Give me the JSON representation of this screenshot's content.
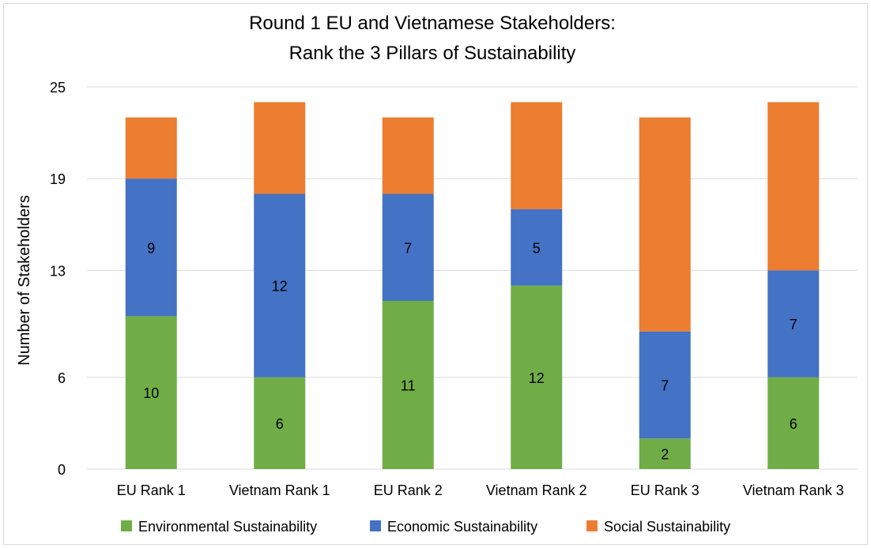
{
  "chart_data": {
    "type": "bar",
    "stacked": true,
    "title": [
      "Round 1 EU and Vietnamese Stakeholders:",
      "Rank the 3 Pillars of Sustainability"
    ],
    "xlabel": "",
    "ylabel": "Number of Stakeholders",
    "ylim": [
      0,
      25
    ],
    "yticks": [
      0,
      6,
      13,
      19,
      25
    ],
    "grid": true,
    "legend_position": "bottom",
    "categories": [
      "EU Rank 1",
      "Vietnam Rank 1",
      "EU Rank 2",
      "Vietnam Rank 2",
      "EU Rank 3",
      "Vietnam Rank 3"
    ],
    "series": [
      {
        "name": "Environmental Sustainability",
        "color": "#70ad47",
        "values": [
          10,
          6,
          11,
          12,
          2,
          6
        ],
        "labels": [
          "10",
          "6",
          "11",
          "12",
          "2",
          "6"
        ]
      },
      {
        "name": "Economic Sustainability",
        "color": "#4472c4",
        "values": [
          9,
          12,
          7,
          5,
          7,
          7
        ],
        "labels": [
          "9",
          "12",
          "7",
          "5",
          "7",
          "7"
        ]
      },
      {
        "name": "Social Sustainability",
        "color": "#ed7d31",
        "values": [
          4,
          6,
          5,
          7,
          14,
          11
        ],
        "labels": [
          "",
          "",
          "",
          "",
          "",
          ""
        ]
      }
    ]
  }
}
